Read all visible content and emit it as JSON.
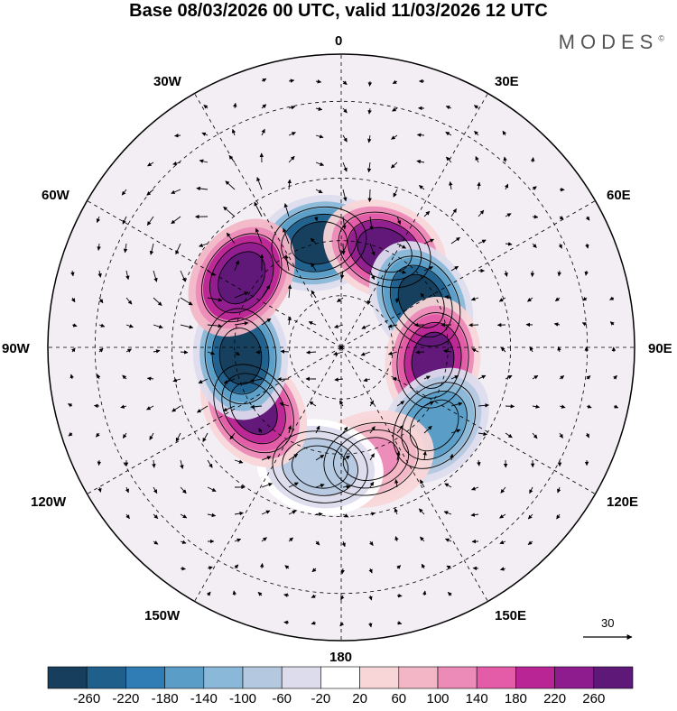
{
  "header": {
    "title": "Base 08/03/2026 00 UTC, valid 11/03/2026 12 UTC",
    "brand": "MODES"
  },
  "map": {
    "projection": "south-polar-stereographic",
    "longitude_labels": {
      "lon_0": "0",
      "lon_30e": "30E",
      "lon_60e": "60E",
      "lon_90e": "90E",
      "lon_120e": "120E",
      "lon_150e": "150E",
      "lon_180": "180",
      "lon_150w": "150W",
      "lon_120w": "120W",
      "lon_90w": "90W",
      "lon_60w": "60W",
      "lon_30w": "30W"
    },
    "anomaly_centers": [
      {
        "name": "low-south-atlantic",
        "sign": "negative",
        "value": -280,
        "lon": -12,
        "lat": -50
      },
      {
        "name": "high-south-atlantic-east",
        "sign": "positive",
        "value": 280,
        "lon": 24,
        "lat": -50
      },
      {
        "name": "low-indian-west",
        "sign": "negative",
        "value": -280,
        "lon": 60,
        "lat": -55
      },
      {
        "name": "high-indian-east",
        "sign": "positive",
        "value": 260,
        "lon": 98,
        "lat": -55
      },
      {
        "name": "low-australia-south",
        "sign": "negative",
        "value": -180,
        "lon": 130,
        "lat": -45
      },
      {
        "name": "high-tasman",
        "sign": "positive",
        "value": 120,
        "lon": 165,
        "lat": -47
      },
      {
        "name": "low-pacific-central",
        "sign": "negative",
        "value": -100,
        "lon": -170,
        "lat": -45
      },
      {
        "name": "high-pacific-south",
        "sign": "positive",
        "value": 260,
        "lon": -125,
        "lat": -50
      },
      {
        "name": "low-amundsen",
        "sign": "negative",
        "value": -280,
        "lon": -95,
        "lat": -52
      },
      {
        "name": "high-south-america",
        "sign": "positive",
        "value": 300,
        "lon": -55,
        "lat": -45
      }
    ]
  },
  "wind_scale": {
    "label": "30"
  },
  "colorbar": {
    "colors": [
      "#173e5c",
      "#1e5f8c",
      "#2f7db4",
      "#5a9ec8",
      "#8ab8d8",
      "#b4c8e0",
      "#dddced",
      "#ffffff",
      "#f8d6d8",
      "#f2b6c6",
      "#ec8ab8",
      "#e45ba8",
      "#ba2596",
      "#8e1c8e",
      "#5e1878"
    ],
    "labels": [
      "-260",
      "-220",
      "-180",
      "-140",
      "-100",
      "-60",
      "-20",
      "20",
      "60",
      "100",
      "140",
      "180",
      "220",
      "260"
    ]
  }
}
